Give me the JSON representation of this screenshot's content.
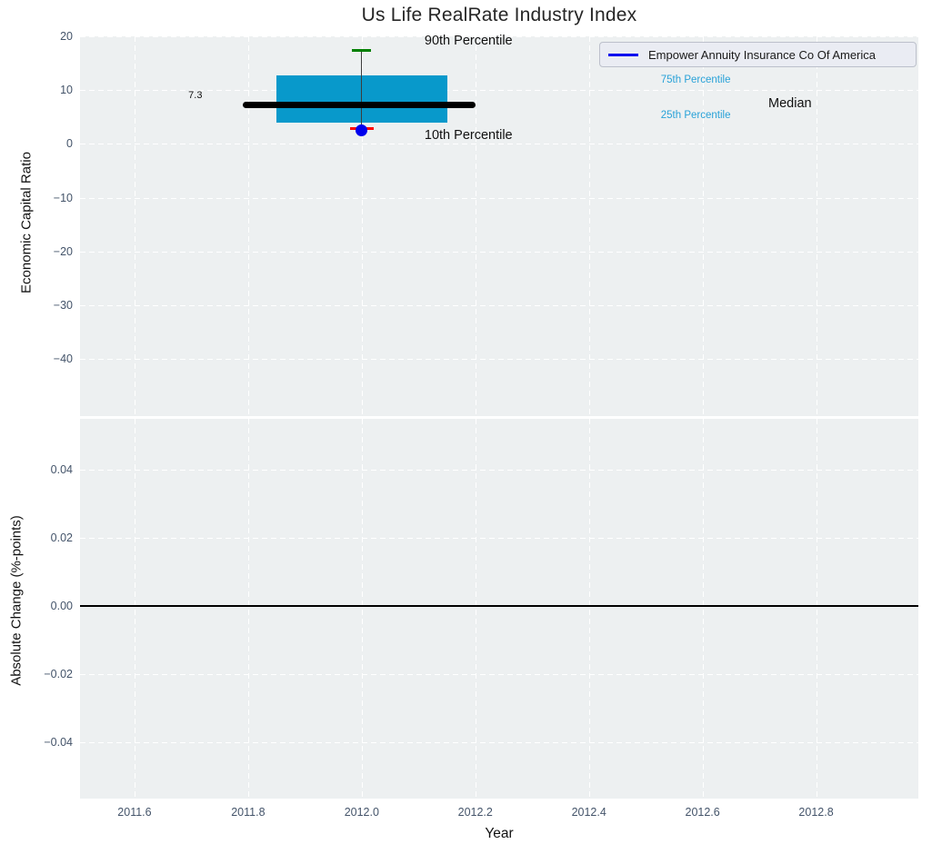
{
  "title": "Us Life RealRate Industry Index",
  "colors": {
    "plot_bg": "#edf0f1",
    "grid": "#ffffff",
    "tick_label": "#44546a",
    "box_fill": "#0899cb",
    "percentile_text": "#29a2d8",
    "median_line": "#000000",
    "whisker_line": "#3c3c3c",
    "p90_cap": "#008000",
    "p10_cap": "#ff0000",
    "company_marker": "#0000ee",
    "zero_line": "#000000",
    "annotation_text": "#111111"
  },
  "chart_data": [
    {
      "type": "box",
      "panel": "top",
      "title": "Us Life RealRate Industry Index",
      "ylabel": "Economic Capital Ratio",
      "xlim": [
        2011.504,
        2012.98
      ],
      "ylim": [
        -50.6,
        20
      ],
      "grid": "white dashed, on",
      "xticks": {
        "values": [
          2011.6,
          2011.8,
          2012.0,
          2012.2,
          2012.4,
          2012.6,
          2012.8
        ]
      },
      "yticks": {
        "values": [
          20,
          10,
          0,
          -10,
          -20,
          -30,
          -40
        ],
        "labels": [
          "20",
          "10",
          "0",
          "−10",
          "−20",
          "−30",
          "−40"
        ]
      },
      "boxes": [
        {
          "x": 2012.0,
          "box_x_range": [
            2011.85,
            2012.15
          ],
          "median_x_range": [
            2011.79,
            2012.2
          ],
          "p90": 17.4,
          "p75": 12.7,
          "median": 7.3,
          "p25": 3.9,
          "p10": 2.9,
          "median_value_label": "7.3"
        }
      ],
      "points": [
        {
          "name": "Empower Annuity Insurance Co Of America",
          "x": 2012.0,
          "y": 2.45
        }
      ],
      "legend": {
        "position": "upper right",
        "entries": [
          {
            "label": "Empower Annuity Insurance Co Of America",
            "color": "#0000ee"
          }
        ]
      },
      "annotations": [
        {
          "id": "p90-label",
          "text": "90th Percentile",
          "x": 2012.188,
          "y": 19.1,
          "color": "#111111",
          "size": 14.5
        },
        {
          "id": "p10-label",
          "text": "10th Percentile",
          "x": 2012.188,
          "y": 1.65,
          "color": "#111111",
          "size": 14.5
        },
        {
          "id": "p75-label",
          "text": "75th Percentile",
          "x": 2012.588,
          "y": 11.9,
          "color": "#29a2d8",
          "size": 11.5
        },
        {
          "id": "p25-label",
          "text": "25th Percentile",
          "x": 2012.588,
          "y": 5.3,
          "color": "#29a2d8",
          "size": 11.5
        },
        {
          "id": "median-label",
          "text": "Median",
          "x": 2012.754,
          "y": 7.45,
          "color": "#111111",
          "size": 14.5
        },
        {
          "id": "median-value",
          "text": "7.3",
          "x": 2011.707,
          "y": 9.0,
          "color": "#111111",
          "size": 11
        }
      ]
    },
    {
      "type": "line",
      "panel": "bottom",
      "ylabel": "Absolute Change (%-points)",
      "xlabel": "Year",
      "xlim": [
        2011.504,
        2012.98
      ],
      "ylim": [
        -0.0564,
        0.0548
      ],
      "grid": "white dashed, on",
      "xticks": {
        "values": [
          2011.6,
          2011.8,
          2012.0,
          2012.2,
          2012.4,
          2012.6,
          2012.8
        ],
        "labels": [
          "2011.6",
          "2011.8",
          "2012.0",
          "2012.2",
          "2012.4",
          "2012.6",
          "2012.8"
        ]
      },
      "yticks": {
        "values": [
          0.04,
          0.02,
          0.0,
          -0.02,
          -0.04
        ],
        "labels": [
          "0.04",
          "0.02",
          "0.00",
          "−0.02",
          "−0.04"
        ]
      },
      "zero_line_y": 0.0,
      "series": []
    }
  ]
}
